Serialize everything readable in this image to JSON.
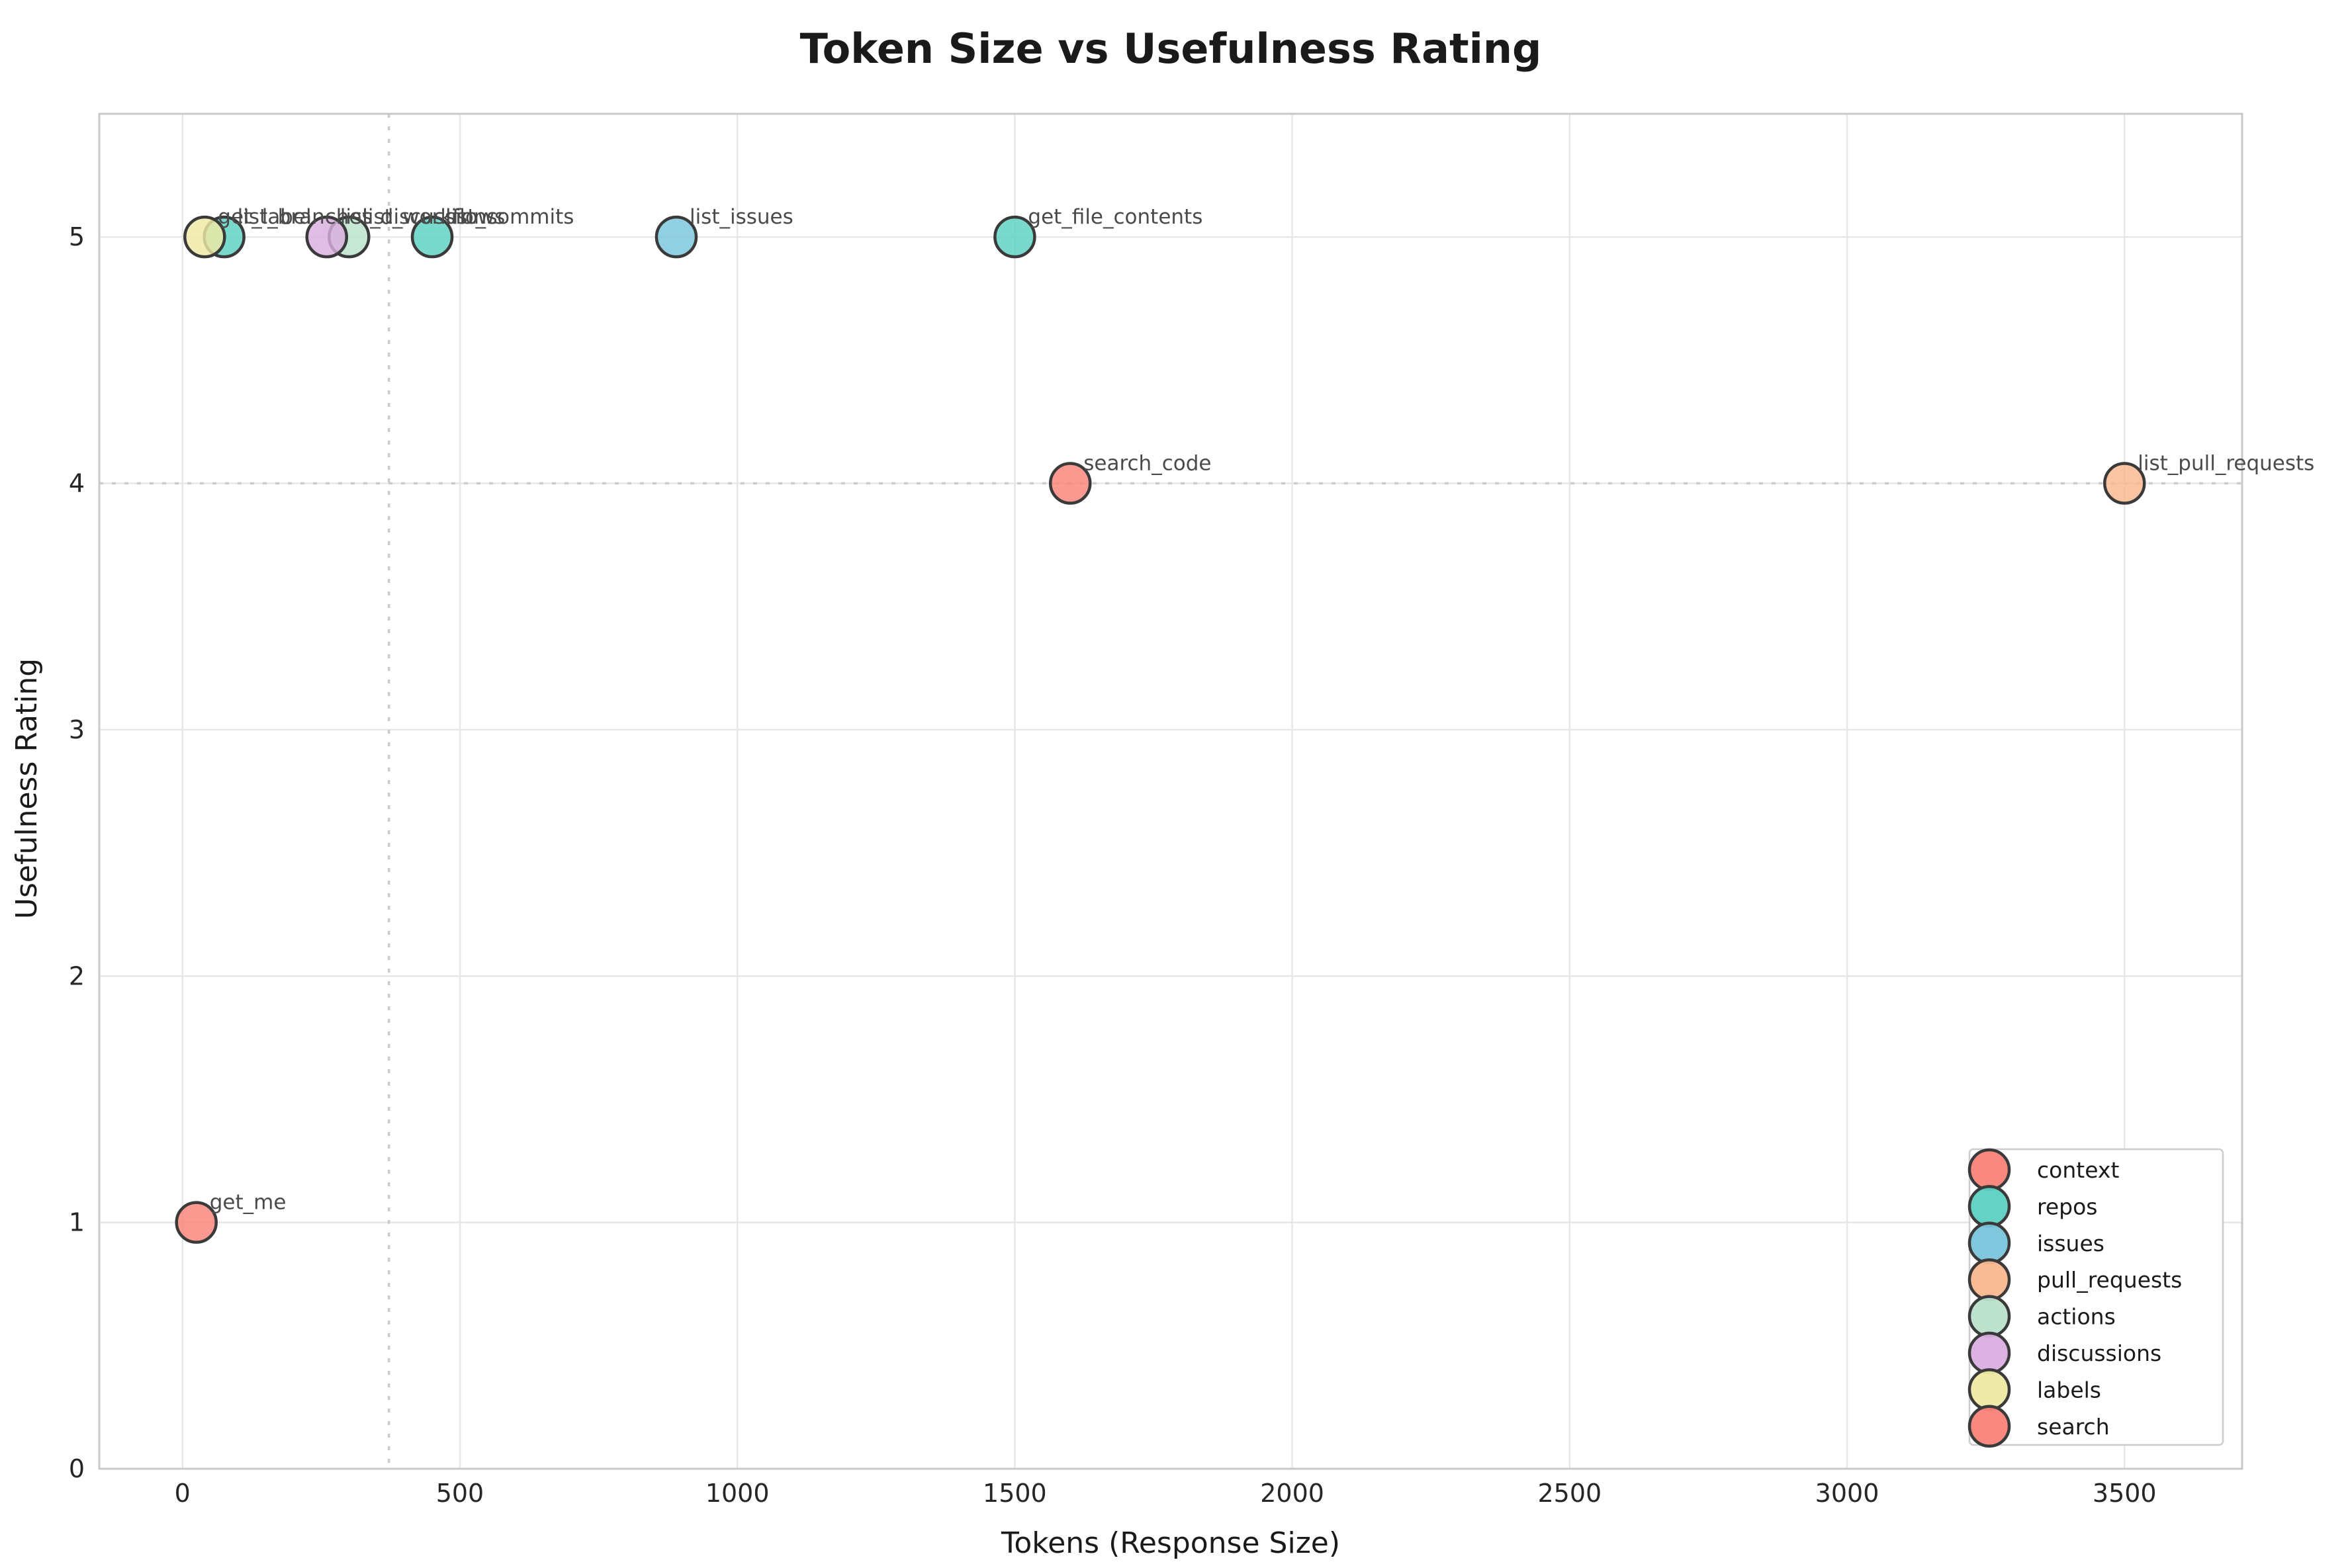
{
  "chart_data": {
    "type": "scatter",
    "title": "Token Size vs Usefulness Rating",
    "xlabel": "Tokens (Response Size)",
    "ylabel": "Usefulness Rating",
    "xlim": [
      -150,
      3712
    ],
    "ylim": [
      0,
      5.5
    ],
    "x_ticks": [
      0,
      500,
      1000,
      1500,
      2000,
      2500,
      3000,
      3500
    ],
    "y_ticks": [
      0,
      1,
      2,
      3,
      4,
      5
    ],
    "grid": true,
    "legend_position": "lower right",
    "reference_lines": {
      "dashed_vline_tokens": 372,
      "dashed_hline_rating": 4
    },
    "groups": [
      {
        "name": "context",
        "color": "#F98378"
      },
      {
        "name": "repos",
        "color": "#5CD1C2"
      },
      {
        "name": "issues",
        "color": "#79C4DC"
      },
      {
        "name": "pull_requests",
        "color": "#F9B78E"
      },
      {
        "name": "actions",
        "color": "#B9E2CB"
      },
      {
        "name": "discussions",
        "color": "#D9AEDF"
      },
      {
        "name": "labels",
        "color": "#EFE9A3"
      },
      {
        "name": "search",
        "color": "#F98378"
      }
    ],
    "points": [
      {
        "label": "get_me",
        "group": "context",
        "tokens": 25,
        "rating": 1
      },
      {
        "label": "get_file_contents",
        "group": "repos",
        "tokens": 1500,
        "rating": 5
      },
      {
        "label": "list_branches",
        "group": "repos",
        "tokens": 75,
        "rating": 5
      },
      {
        "label": "list_commits",
        "group": "repos",
        "tokens": 450,
        "rating": 5
      },
      {
        "label": "list_issues",
        "group": "issues",
        "tokens": 890,
        "rating": 5
      },
      {
        "label": "list_pull_requests",
        "group": "pull_requests",
        "tokens": 3500,
        "rating": 4
      },
      {
        "label": "list_workflows",
        "group": "actions",
        "tokens": 300,
        "rating": 5
      },
      {
        "label": "list_discussions",
        "group": "discussions",
        "tokens": 260,
        "rating": 5
      },
      {
        "label": "get_label",
        "group": "labels",
        "tokens": 40,
        "rating": 5
      },
      {
        "label": "search_code",
        "group": "search",
        "tokens": 1600,
        "rating": 4
      }
    ],
    "style": {
      "grid_color": "#E6E6E6",
      "spine_color": "#C8C8C8",
      "refline_color": "#CBCBCB",
      "point_stroke": "#3A3A3A",
      "title_color": "#1A1A1A",
      "tick_color": "#262626",
      "axis_label_color": "#1A1A1A",
      "annotation_color": "#4A4A4A",
      "legend_text_color": "#1A1A1A",
      "legend_border_color": "#CCCCCC",
      "legend_bg": "#FFFFFF"
    }
  }
}
